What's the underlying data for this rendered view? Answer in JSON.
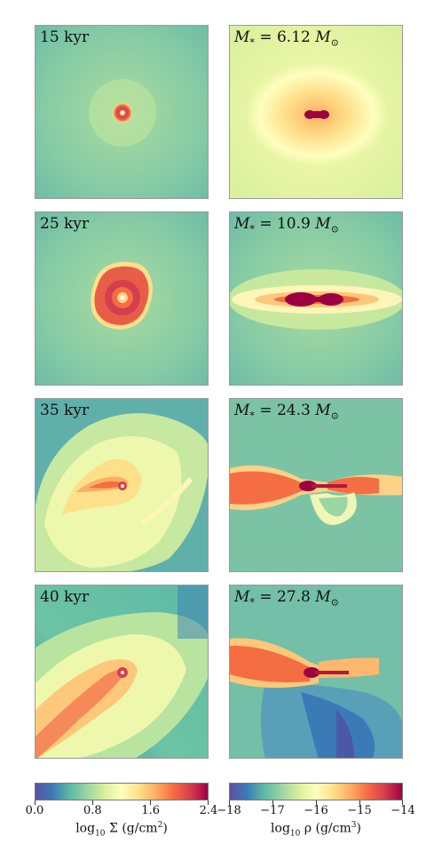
{
  "chart_data": {
    "type": "heatmap",
    "description_fields": {
      "rows": 4,
      "columns": 2
    },
    "panels": [
      {
        "time_label": "15 kyr",
        "mass_prefix": "M",
        "mass_sub": "*",
        "mass_eq": " = 6.12 ",
        "mass_unit": "M",
        "mass_unit_sub": "⊙",
        "stellar_mass_msun": 6.12
      },
      {
        "time_label": "25 kyr",
        "mass_prefix": "M",
        "mass_sub": "*",
        "mass_eq": " = 10.9 ",
        "mass_unit": "M",
        "mass_unit_sub": "⊙",
        "stellar_mass_msun": 10.9
      },
      {
        "time_label": "35 kyr",
        "mass_prefix": "M",
        "mass_sub": "*",
        "mass_eq": " = 24.3 ",
        "mass_unit": "M",
        "mass_unit_sub": "⊙",
        "stellar_mass_msun": 24.3
      },
      {
        "time_label": "40 kyr",
        "mass_prefix": "M",
        "mass_sub": "*",
        "mass_eq": " = 27.8 ",
        "mass_unit": "M",
        "mass_unit_sub": "⊙",
        "stellar_mass_msun": 27.8
      }
    ],
    "colorbars": [
      {
        "name": "surface-density",
        "range": [
          0.0,
          2.4
        ],
        "ticks": [
          "0.0",
          "0.8",
          "1.6",
          "2.4"
        ],
        "label_prefix": "log",
        "label_sub": "10",
        "label_sym": " Σ (g/cm",
        "label_sup": "2",
        "label_end": ")",
        "colormap": "Spectral_r"
      },
      {
        "name": "volume-density",
        "range": [
          -18,
          -14
        ],
        "ticks": [
          "−18",
          "−17",
          "−16",
          "−15",
          "−14"
        ],
        "label_prefix": "log",
        "label_sub": "10",
        "label_sym": " ρ (g/cm",
        "label_sup": "3",
        "label_end": ")",
        "colormap": "Spectral_r"
      }
    ],
    "colors": {
      "low": "#5a4fa2",
      "mid_low": "#6cc4a4",
      "mid": "#fefebe",
      "mid_high": "#f67f4b",
      "high": "#9e0142"
    }
  }
}
